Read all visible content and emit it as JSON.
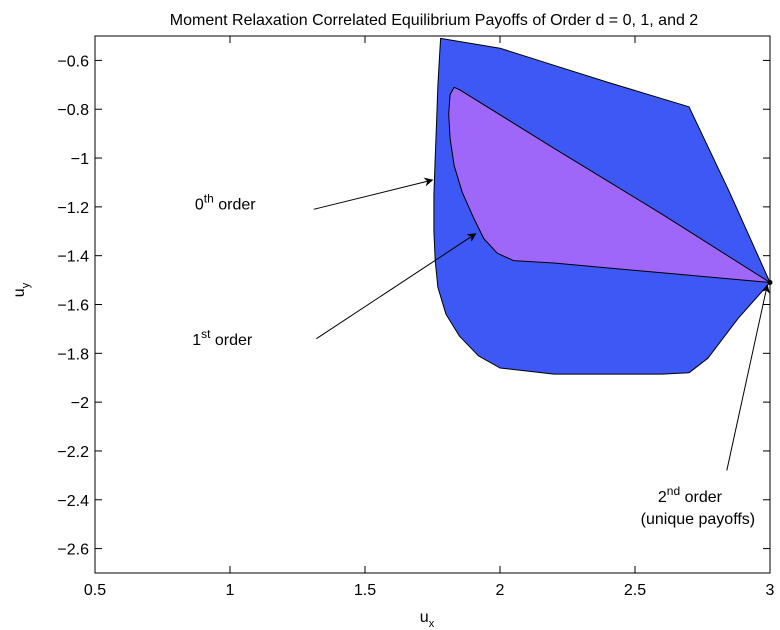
{
  "chart_data": {
    "type": "area",
    "title": "Moment Relaxation Correlated Equilibrium Payoffs of Order d = 0, 1, and 2",
    "xlabel": {
      "base": "u",
      "sub": "x"
    },
    "ylabel": {
      "base": "u",
      "sub": "y"
    },
    "xlim": [
      0.5,
      3
    ],
    "ylim": [
      -2.7,
      -0.5
    ],
    "xticks": [
      0.5,
      1,
      1.5,
      2,
      2.5,
      3
    ],
    "xtick_labels": [
      "0.5",
      "1",
      "1.5",
      "2",
      "2.5",
      "3"
    ],
    "yticks": [
      -0.6,
      -0.8,
      -1,
      -1.2,
      -1.4,
      -1.6,
      -1.8,
      -2,
      -2.2,
      -2.4,
      -2.6
    ],
    "ytick_labels": [
      "−0.6",
      "−0.8",
      "−1",
      "−1.2",
      "−1.4",
      "−1.6",
      "−1.8",
      "−2",
      "−2.2",
      "−2.4",
      "−2.6"
    ],
    "grid": false,
    "colors": {
      "order0": "#3d58f5",
      "order1": "#9e67fa",
      "outline": "#000000"
    },
    "regions": [
      {
        "key": "order0",
        "points": [
          [
            1.78,
            -0.51
          ],
          [
            2.0,
            -0.55
          ],
          [
            2.2,
            -0.62
          ],
          [
            2.4,
            -0.69
          ],
          [
            2.7,
            -0.79
          ],
          [
            2.85,
            -1.14
          ],
          [
            3.0,
            -1.51
          ],
          [
            2.88,
            -1.66
          ],
          [
            2.77,
            -1.82
          ],
          [
            2.7,
            -1.88
          ],
          [
            2.6,
            -1.885
          ],
          [
            2.4,
            -1.885
          ],
          [
            2.2,
            -1.885
          ],
          [
            2.0,
            -1.86
          ],
          [
            1.92,
            -1.81
          ],
          [
            1.85,
            -1.73
          ],
          [
            1.8,
            -1.64
          ],
          [
            1.77,
            -1.53
          ],
          [
            1.76,
            -1.42
          ],
          [
            1.755,
            -1.3
          ],
          [
            1.755,
            -1.15
          ],
          [
            1.76,
            -1.0
          ],
          [
            1.765,
            -0.85
          ],
          [
            1.77,
            -0.7
          ],
          [
            1.775,
            -0.6
          ]
        ]
      },
      {
        "key": "order1",
        "points": [
          [
            1.83,
            -0.71
          ],
          [
            1.85,
            -0.72
          ],
          [
            2.2,
            -0.96
          ],
          [
            2.6,
            -1.23
          ],
          [
            3.0,
            -1.51
          ],
          [
            2.6,
            -1.47
          ],
          [
            2.2,
            -1.43
          ],
          [
            2.05,
            -1.42
          ],
          [
            1.99,
            -1.39
          ],
          [
            1.94,
            -1.33
          ],
          [
            1.9,
            -1.24
          ],
          [
            1.86,
            -1.14
          ],
          [
            1.83,
            -1.03
          ],
          [
            1.815,
            -0.92
          ],
          [
            1.81,
            -0.82
          ],
          [
            1.815,
            -0.74
          ]
        ]
      }
    ],
    "point": {
      "key": "order2",
      "x": 3.0,
      "y": -1.51
    },
    "annotations": [
      {
        "key": "ann0",
        "base": "0",
        "sup": "th",
        "rest": " order",
        "text_x": 0.87,
        "text_y": -1.21,
        "arrow_from": [
          1.31,
          -1.21
        ],
        "arrow_to": [
          1.75,
          -1.09
        ]
      },
      {
        "key": "ann1",
        "base": "1",
        "sup": "st",
        "rest": " order",
        "text_x": 0.86,
        "text_y": -1.765,
        "arrow_from": [
          1.32,
          -1.74
        ],
        "arrow_to": [
          1.91,
          -1.31
        ]
      },
      {
        "key": "ann2",
        "base": "2",
        "sup": "nd",
        "rest": " order",
        "line2": "(unique payoffs)",
        "text_x": 2.57,
        "text_y": -2.41,
        "arrow_from": [
          2.84,
          -2.28
        ],
        "arrow_to": [
          2.99,
          -1.52
        ]
      }
    ]
  }
}
